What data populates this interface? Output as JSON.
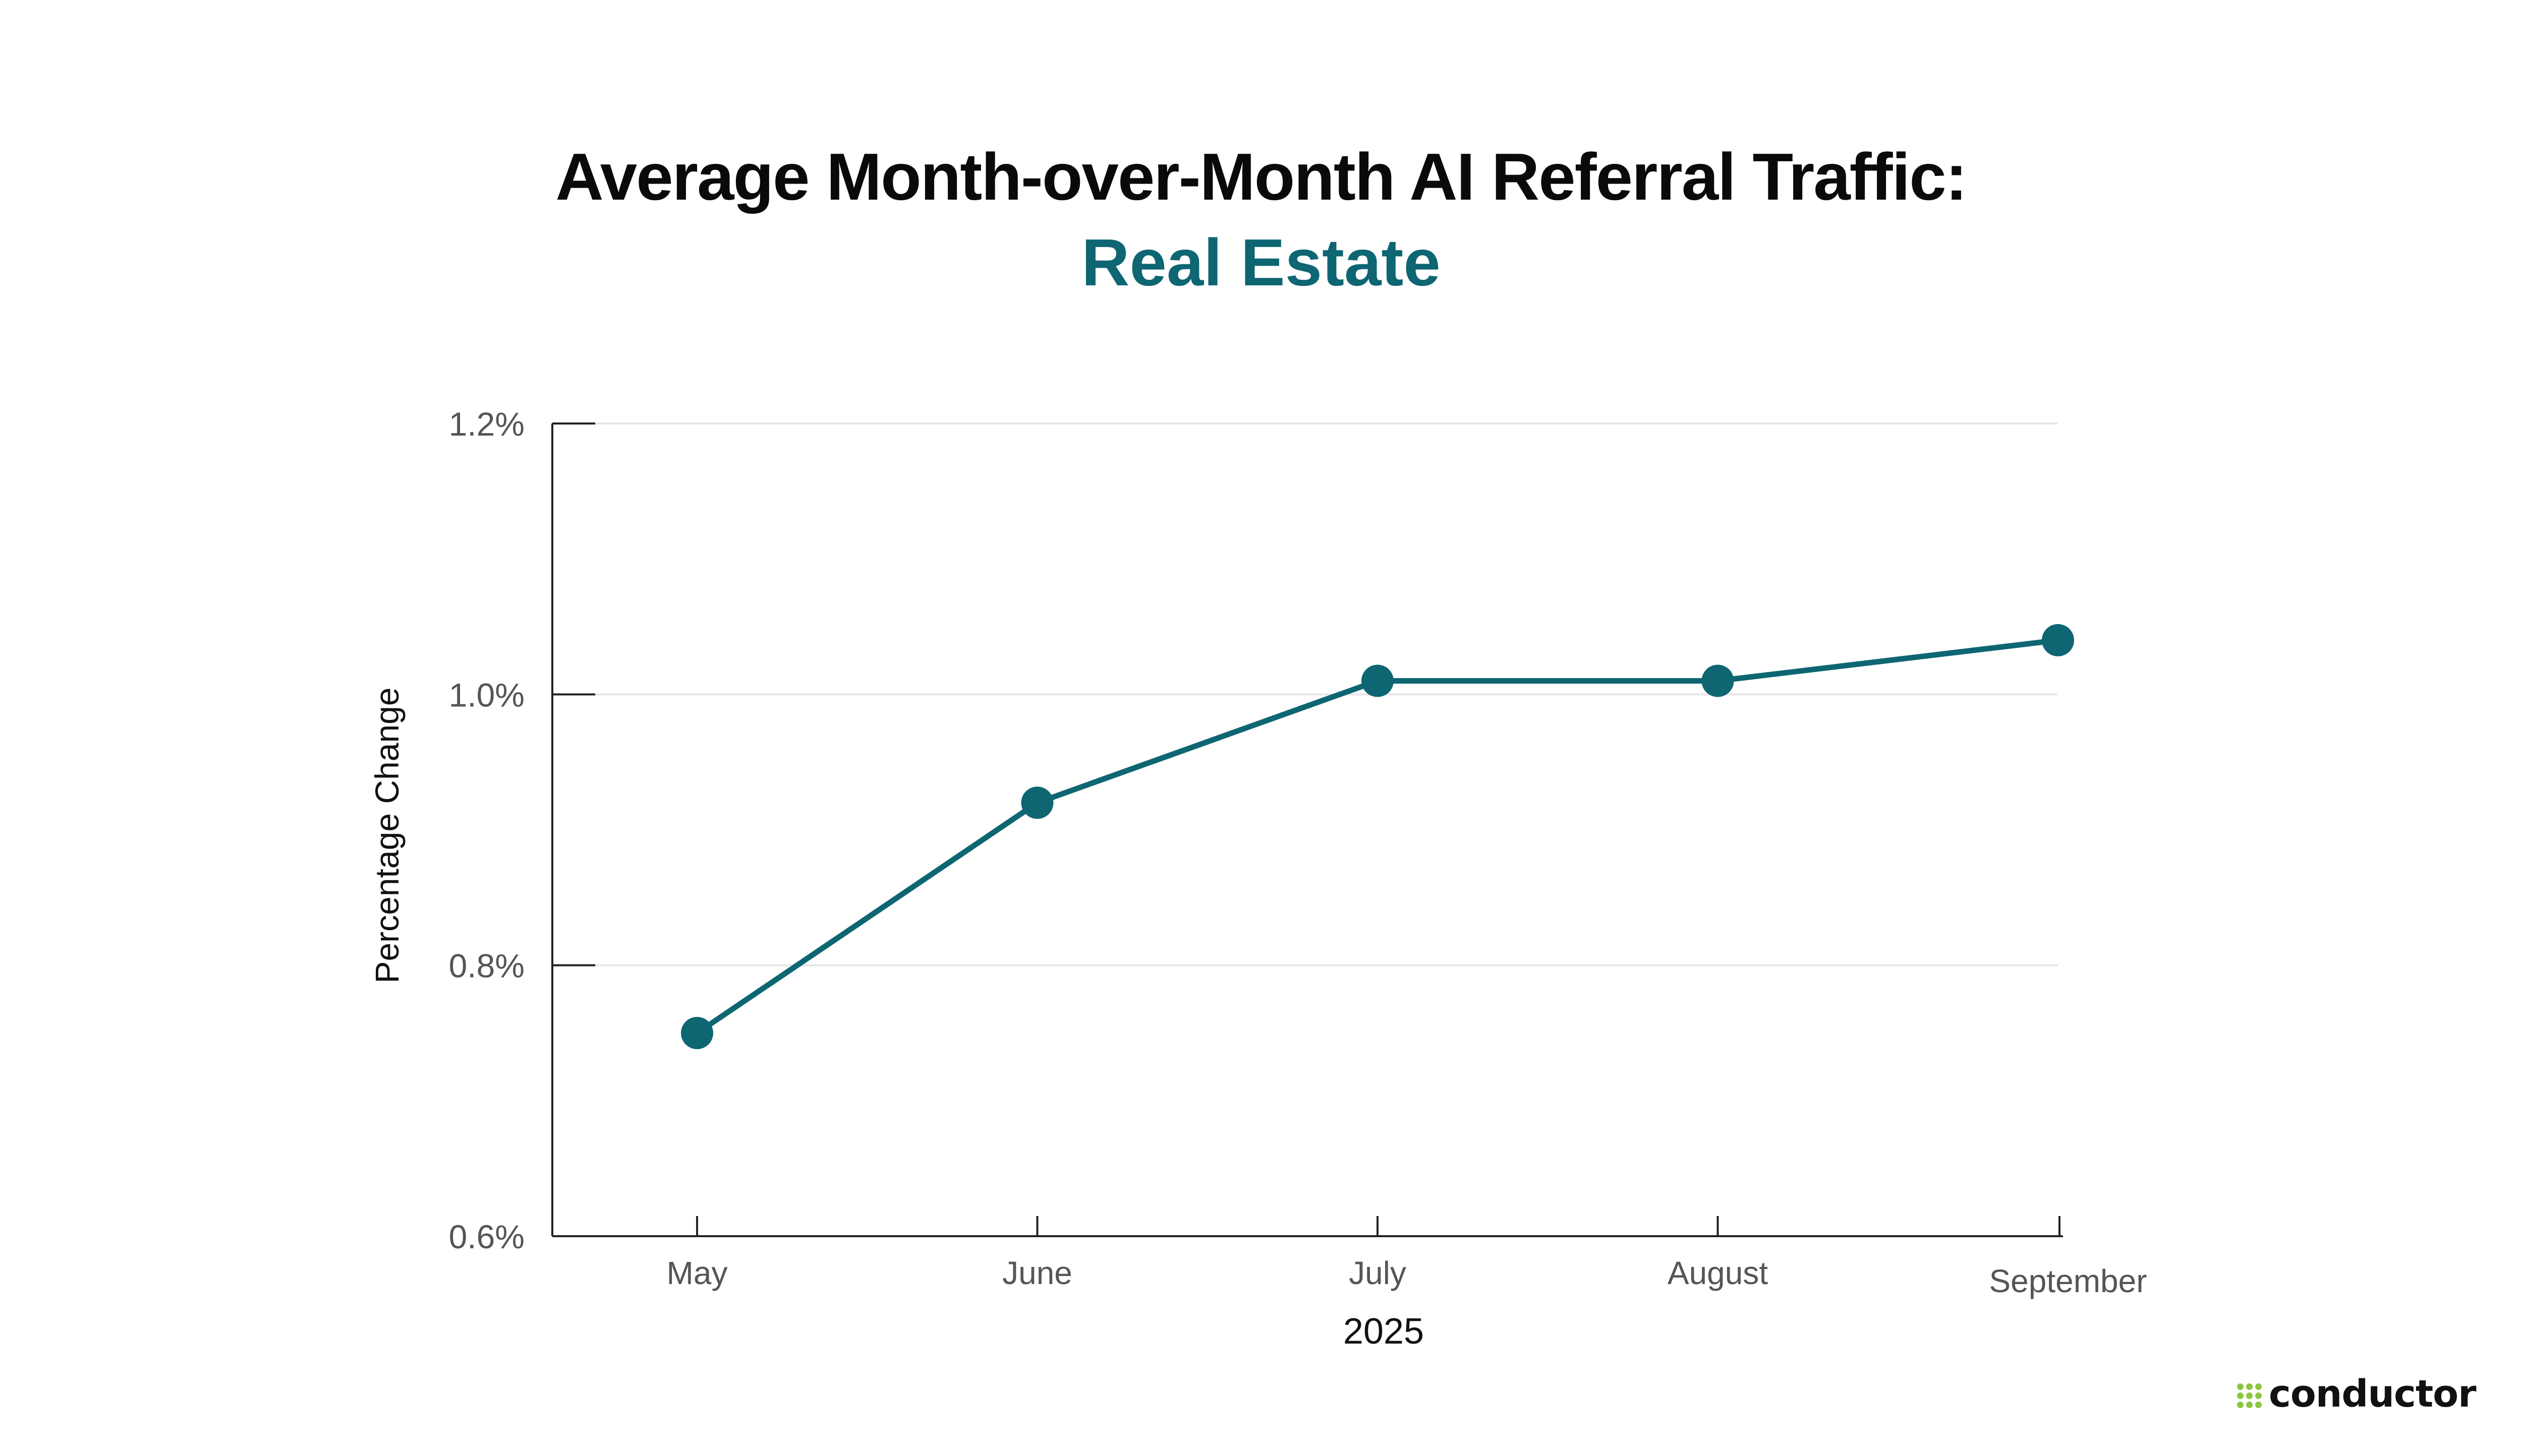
{
  "header": {
    "title": "Average Month-over-Month AI Referral Traffic:",
    "subtitle": "Real Estate"
  },
  "brand": {
    "name": "conductor",
    "mark_icon": "dot-cluster-icon",
    "mark_color": "#8cc63f"
  },
  "colors": {
    "accent": "#0d6672",
    "title": "#0a0a0a",
    "axis_text": "#555555",
    "grid": "#e6e6e6"
  },
  "chart_data": {
    "type": "line",
    "title": "Average Month-over-Month AI Referral Traffic:",
    "subtitle": "Real Estate",
    "categories": [
      "May",
      "June",
      "July",
      "August",
      "September"
    ],
    "series": [
      {
        "values": [
          0.75,
          0.92,
          1.01,
          1.01,
          1.04
        ]
      }
    ],
    "xlabel": "2025",
    "ylabel": "Percentage Change",
    "ylim": [
      0.6,
      1.2
    ],
    "yticks": [
      0.6,
      0.8,
      1.0,
      1.2
    ],
    "ytick_labels": [
      "0.6%",
      "0.8%",
      "1.0%",
      "1.2%"
    ],
    "grid": true,
    "markers": true
  }
}
